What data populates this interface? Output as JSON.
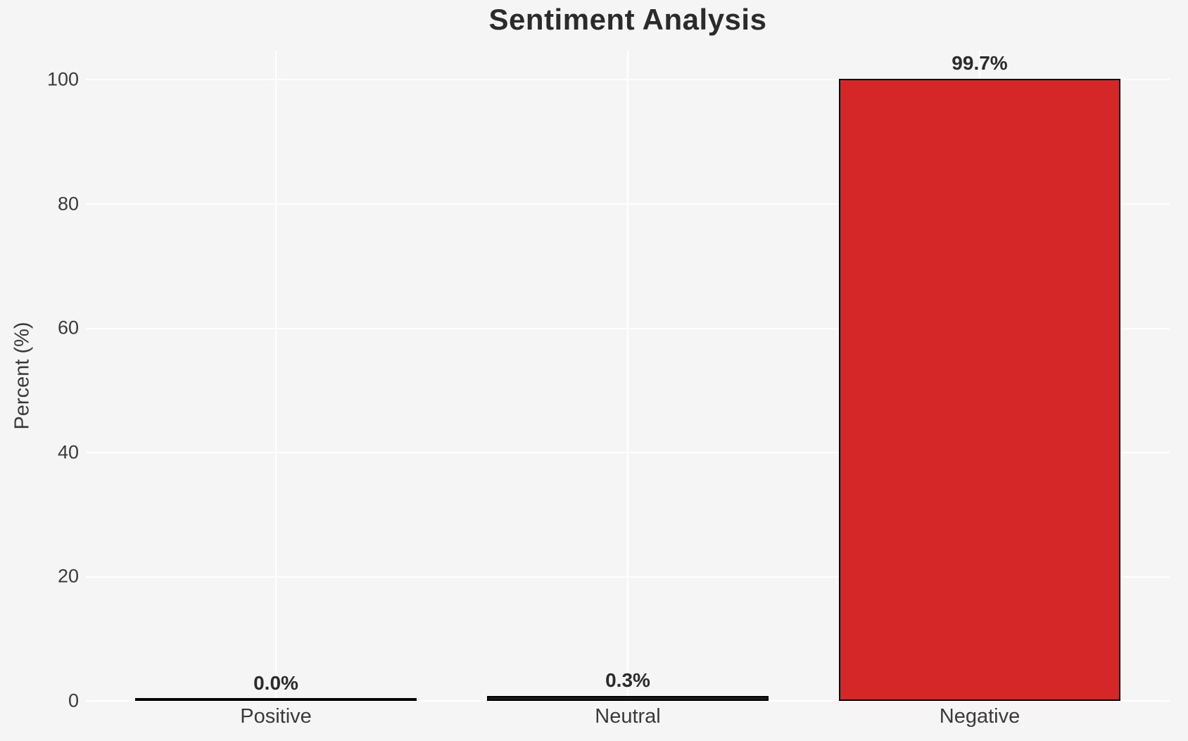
{
  "figure": {
    "background_color": "#f5f5f6",
    "grid_color": "#ffffff",
    "title_color": "#2b2b2b",
    "tick_color": "#3a3a3a"
  },
  "chart_data": {
    "type": "bar",
    "title": "Sentiment Analysis",
    "xlabel": "",
    "ylabel": "Percent (%)",
    "categories": [
      "Positive",
      "Neutral",
      "Negative"
    ],
    "values": [
      0.0,
      0.3,
      99.7
    ],
    "bar_value_labels": [
      "0.0%",
      "0.3%",
      "99.7%"
    ],
    "bar_fill_colors": [
      "#1a1a1a",
      "#1a1a1a",
      "#d62728"
    ],
    "bar_edge_color": "#000000",
    "accent_color": "#d62728",
    "yticks": [
      0,
      20,
      40,
      60,
      80,
      100
    ],
    "ylim": [
      0,
      104.7
    ],
    "grid": "on",
    "legend": "none"
  }
}
